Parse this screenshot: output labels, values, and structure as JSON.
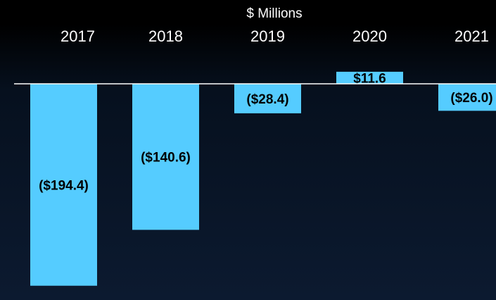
{
  "chart_data": {
    "type": "bar",
    "title": "$ Millions",
    "categories": [
      "2017",
      "2018",
      "2019",
      "2020",
      "2021"
    ],
    "values": [
      -194.4,
      -140.6,
      -28.4,
      11.6,
      -26.0
    ],
    "value_labels": [
      "($194.4)",
      "($140.6)",
      "($28.4)",
      "$11.6",
      "($26.0)"
    ],
    "color": "#55ccff",
    "ylim": [
      -200,
      20
    ]
  }
}
